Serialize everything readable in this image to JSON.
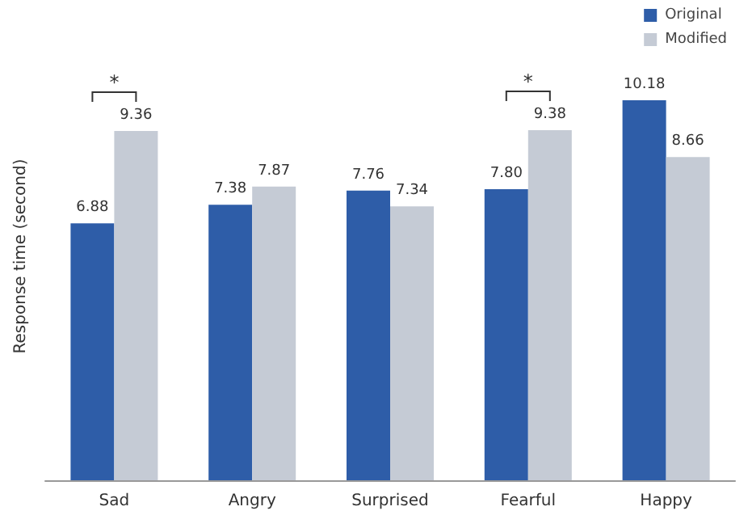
{
  "chart_data": {
    "type": "bar",
    "ylabel": "Response time (second)",
    "categories": [
      "Sad",
      "Angry",
      "Surprised",
      "Fearful",
      "Happy"
    ],
    "series": [
      {
        "name": "Original",
        "color": "#2e5da8",
        "values": [
          6.88,
          7.38,
          7.76,
          7.8,
          10.18
        ],
        "value_labels": [
          "6.88",
          "7.38",
          "7.76",
          "7.80",
          "10.18"
        ]
      },
      {
        "name": "Modified",
        "color": "#c5cbd5",
        "values": [
          9.36,
          7.87,
          7.34,
          9.38,
          8.66
        ],
        "value_labels": [
          "9.36",
          "7.87",
          "7.34",
          "9.38",
          "8.66"
        ]
      }
    ],
    "grid": false,
    "legend": "top right",
    "annotations": [
      "*",
      "*"
    ]
  }
}
